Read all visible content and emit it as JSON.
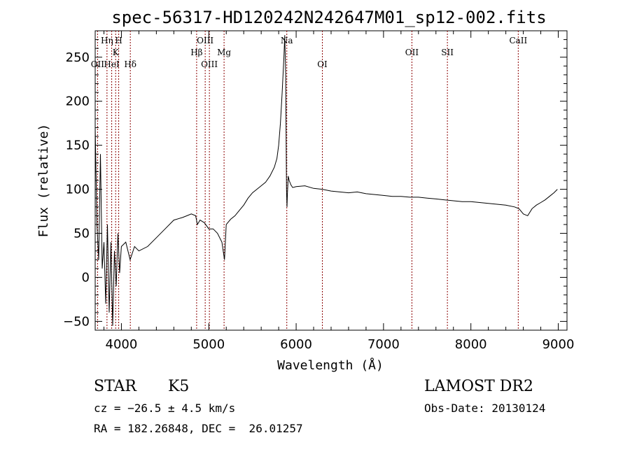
{
  "chart_data": {
    "type": "line",
    "title": "spec-56317-HD120242N242647M01_sp12-002.fits",
    "xlabel": "Wavelength (Å)",
    "ylabel": "Flux (relative)",
    "xlim": [
      3700,
      9100
    ],
    "ylim": [
      -60,
      280
    ],
    "x_ticks": [
      4000,
      5000,
      6000,
      7000,
      8000,
      9000
    ],
    "y_ticks": [
      -50,
      0,
      50,
      100,
      150,
      200,
      250
    ],
    "grid": false,
    "line_color": "#000000",
    "marker_color": "#8b0000",
    "series": [
      {
        "x": [
          3700,
          3720,
          3740,
          3760,
          3780,
          3800,
          3820,
          3840,
          3860,
          3880,
          3900,
          3920,
          3940,
          3960,
          3980,
          4000,
          4050,
          4100,
          4150,
          4200,
          4300,
          4400,
          4500,
          4600,
          4700,
          4750,
          4800,
          4850,
          4870,
          4900,
          4950,
          5000,
          5050,
          5100,
          5150,
          5180,
          5200,
          5250,
          5300,
          5350,
          5400,
          5450,
          5500,
          5550,
          5600,
          5650,
          5700,
          5750,
          5780,
          5800,
          5820,
          5840,
          5860,
          5870,
          5880,
          5890,
          5895,
          5900,
          5910,
          5920,
          5940,
          5960,
          6000,
          6100,
          6200,
          6300,
          6400,
          6500,
          6600,
          6700,
          6800,
          6900,
          7000,
          7100,
          7200,
          7300,
          7400,
          7500,
          7600,
          7700,
          7800,
          7900,
          8000,
          8100,
          8200,
          8300,
          8400,
          8500,
          8550,
          8600,
          8650,
          8700,
          8750,
          8800,
          8850,
          8900,
          8950,
          8990
        ],
        "y": [
          170,
          60,
          20,
          140,
          10,
          40,
          -30,
          60,
          -40,
          40,
          -55,
          30,
          -10,
          50,
          5,
          35,
          40,
          20,
          35,
          30,
          35,
          45,
          55,
          65,
          68,
          70,
          72,
          70,
          60,
          65,
          62,
          55,
          55,
          50,
          40,
          20,
          60,
          66,
          70,
          76,
          82,
          90,
          96,
          100,
          104,
          108,
          115,
          125,
          135,
          150,
          175,
          210,
          250,
          275,
          230,
          100,
          80,
          95,
          115,
          110,
          105,
          102,
          103,
          104,
          101,
          100,
          98,
          97,
          96,
          97,
          95,
          94,
          93,
          92,
          92,
          91,
          91,
          90,
          89,
          88,
          87,
          86,
          86,
          85,
          84,
          83,
          82,
          80,
          78,
          72,
          70,
          78,
          82,
          85,
          88,
          92,
          96,
          100
        ]
      }
    ],
    "line_markers": [
      {
        "label": "Hη",
        "x": 3835,
        "row": 1
      },
      {
        "label": "H",
        "x": 3969,
        "row": 1
      },
      {
        "label": "K",
        "x": 3934,
        "row": 2
      },
      {
        "label": "OII",
        "x": 3727,
        "row": 3
      },
      {
        "label": "HeI",
        "x": 3889,
        "row": 3
      },
      {
        "label": "Hδ",
        "x": 4102,
        "row": 3
      },
      {
        "label": "OIII",
        "x": 4959,
        "row": 1
      },
      {
        "label": "Hβ",
        "x": 4861,
        "row": 2
      },
      {
        "label": "Mg",
        "x": 5175,
        "row": 2
      },
      {
        "label": "OIII",
        "x": 5007,
        "row": 3
      },
      {
        "label": "Na",
        "x": 5893,
        "row": 1
      },
      {
        "label": "OI",
        "x": 6300,
        "row": 3
      },
      {
        "label": "OII",
        "x": 7325,
        "row": 2
      },
      {
        "label": "SII",
        "x": 7731,
        "row": 2
      },
      {
        "label": "CaII",
        "x": 8542,
        "row": 1
      }
    ]
  },
  "info": {
    "class_label": "STAR",
    "subclass": "K5",
    "survey": "LAMOST DR2",
    "cz": "cz = −26.5 ± 4.5 km/s",
    "obs_date": "Obs-Date: 20130124",
    "coords": "RA = 182.26848, DEC =  26.01257"
  }
}
